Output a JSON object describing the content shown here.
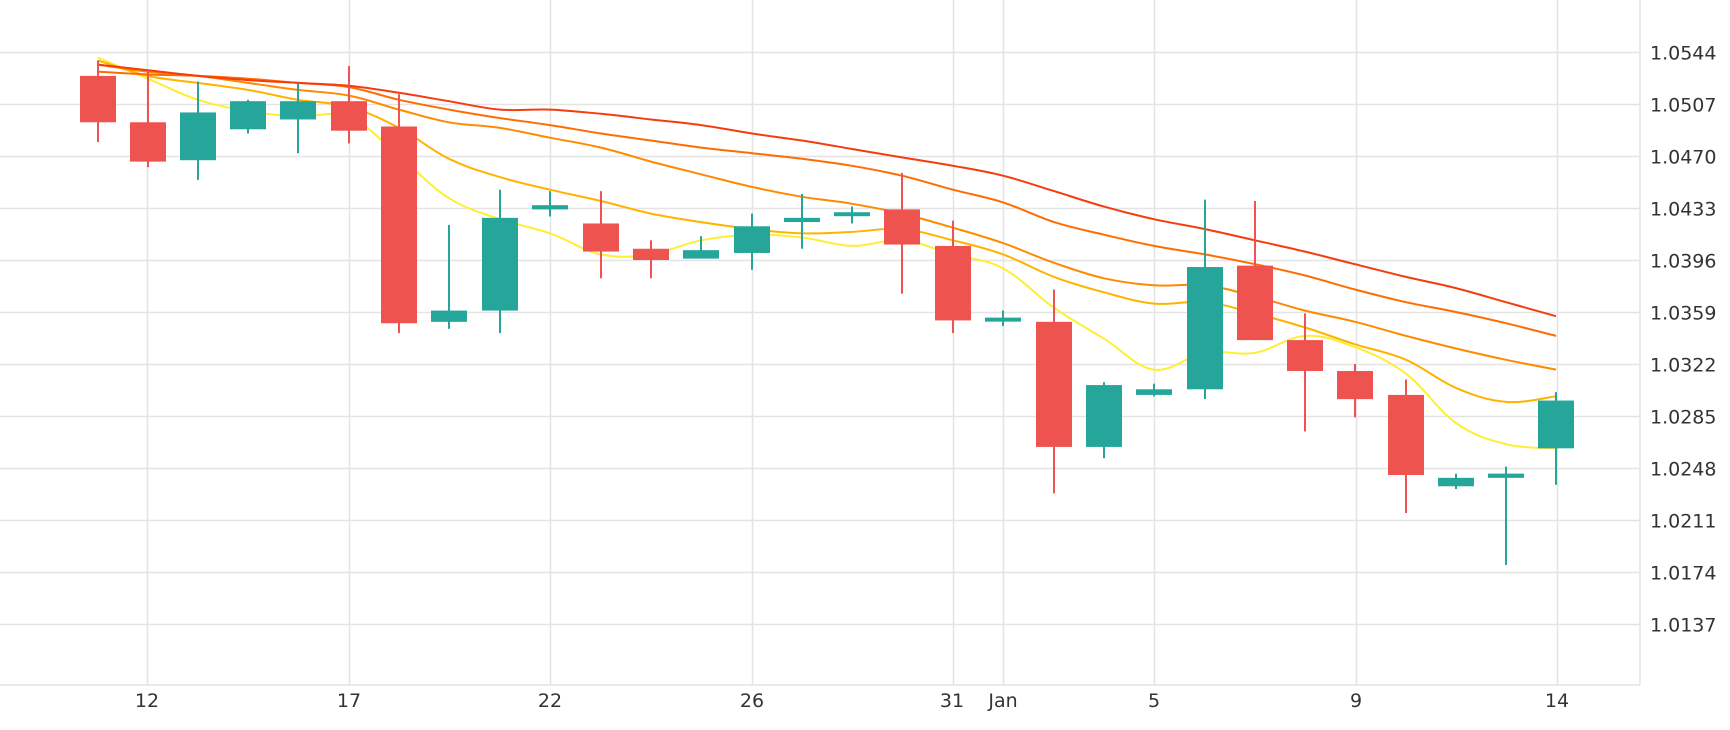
{
  "chart_data": {
    "type": "candlestick",
    "x_ticks": [
      "12",
      "17",
      "22",
      "26",
      "31",
      "Jan",
      "5",
      "9",
      "14"
    ],
    "y_ticks": [
      "1.0544",
      "1.0507",
      "1.0470",
      "1.0433",
      "1.0396",
      "1.0359",
      "1.0322",
      "1.0285",
      "1.0248",
      "1.0211",
      "1.0174",
      "1.0137"
    ],
    "ylim": [
      1.0104,
      1.0581
    ],
    "grid": true,
    "colors": {
      "up": "#26a69a",
      "down": "#ef5350",
      "grid": "#e4e4e4",
      "ma_lines": [
        "#ffee33",
        "#ffb300",
        "#ff8a00",
        "#ff6d00",
        "#f53c0f"
      ]
    },
    "candles": [
      {
        "date": "Dec 11",
        "open": 1.0527,
        "high": 1.0538,
        "low": 1.048,
        "close": 1.0494
      },
      {
        "date": "Dec 12",
        "open": 1.0494,
        "high": 1.0531,
        "low": 1.0462,
        "close": 1.0466
      },
      {
        "date": "Dec 13",
        "open": 1.0467,
        "high": 1.0523,
        "low": 1.0453,
        "close": 1.0501
      },
      {
        "date": "Dec 14",
        "open": 1.0489,
        "high": 1.051,
        "low": 1.0486,
        "close": 1.0509
      },
      {
        "date": "Dec 16",
        "open": 1.0496,
        "high": 1.0522,
        "low": 1.0472,
        "close": 1.0509
      },
      {
        "date": "Dec 17",
        "open": 1.0509,
        "high": 1.0534,
        "low": 1.0479,
        "close": 1.0488
      },
      {
        "date": "Dec 18",
        "open": 1.0491,
        "high": 1.0514,
        "low": 1.0344,
        "close": 1.0351
      },
      {
        "date": "Dec 19",
        "open": 1.0352,
        "high": 1.0421,
        "low": 1.0347,
        "close": 1.036
      },
      {
        "date": "Dec 20",
        "open": 1.036,
        "high": 1.0446,
        "low": 1.0344,
        "close": 1.0426
      },
      {
        "date": "Dec 22",
        "open": 1.0432,
        "high": 1.0445,
        "low": 1.0427,
        "close": 1.0435
      },
      {
        "date": "Dec 23",
        "open": 1.0422,
        "high": 1.0445,
        "low": 1.0383,
        "close": 1.0402
      },
      {
        "date": "Dec 24",
        "open": 1.0404,
        "high": 1.041,
        "low": 1.0383,
        "close": 1.0396
      },
      {
        "date": "Dec 25",
        "open": 1.0397,
        "high": 1.0413,
        "low": 1.0397,
        "close": 1.0403
      },
      {
        "date": "Dec 26",
        "open": 1.0401,
        "high": 1.0429,
        "low": 1.0389,
        "close": 1.042
      },
      {
        "date": "Dec 27",
        "open": 1.0423,
        "high": 1.0443,
        "low": 1.0404,
        "close": 1.0426
      },
      {
        "date": "Dec 29",
        "open": 1.0428,
        "high": 1.0434,
        "low": 1.0422,
        "close": 1.043
      },
      {
        "date": "Dec 30",
        "open": 1.0432,
        "high": 1.0458,
        "low": 1.0372,
        "close": 1.0407
      },
      {
        "date": "Dec 31",
        "open": 1.0406,
        "high": 1.0424,
        "low": 1.0344,
        "close": 1.0353
      },
      {
        "date": "Jan 1",
        "open": 1.0355,
        "high": 1.036,
        "low": 1.0349,
        "close": 1.0355
      },
      {
        "date": "Jan 3",
        "open": 1.0352,
        "high": 1.0375,
        "low": 1.023,
        "close": 1.0263
      },
      {
        "date": "Jan 4",
        "open": 1.0263,
        "high": 1.0309,
        "low": 1.0255,
        "close": 1.0307
      },
      {
        "date": "Jan 5",
        "open": 1.03,
        "high": 1.0308,
        "low": 1.0299,
        "close": 1.0304
      },
      {
        "date": "Jan 6",
        "open": 1.0304,
        "high": 1.0439,
        "low": 1.0297,
        "close": 1.0391
      },
      {
        "date": "Jan 7",
        "open": 1.0392,
        "high": 1.0438,
        "low": 1.0339,
        "close": 1.0339
      },
      {
        "date": "Jan 8",
        "open": 1.0339,
        "high": 1.0358,
        "low": 1.0274,
        "close": 1.0317
      },
      {
        "date": "Jan 9",
        "open": 1.0317,
        "high": 1.0322,
        "low": 1.0284,
        "close": 1.0297
      },
      {
        "date": "Jan 10",
        "open": 1.03,
        "high": 1.0311,
        "low": 1.0216,
        "close": 1.0243
      },
      {
        "date": "Jan 12",
        "open": 1.0235,
        "high": 1.0244,
        "low": 1.0233,
        "close": 1.0241
      },
      {
        "date": "Jan 13",
        "open": 1.0241,
        "high": 1.0249,
        "low": 1.0179,
        "close": 1.0244
      },
      {
        "date": "Jan 14",
        "open": 1.0262,
        "high": 1.0302,
        "low": 1.0236,
        "close": 1.0296
      }
    ],
    "ma_series": [
      {
        "values": [
          1.054,
          1.0525,
          1.051,
          1.0502,
          1.0498,
          1.0498,
          1.047,
          1.044,
          1.0425,
          1.0415,
          1.04,
          1.04,
          1.041,
          1.0414,
          1.0412,
          1.0406,
          1.041,
          1.04,
          1.039,
          1.0362,
          1.034,
          1.0318,
          1.033,
          1.033,
          1.0342,
          1.0334,
          1.0315,
          1.028,
          1.0265,
          1.0262
        ]
      },
      {
        "values": [
          1.0538,
          1.0527,
          1.0522,
          1.0517,
          1.051,
          1.0505,
          1.049,
          1.0468,
          1.0455,
          1.0446,
          1.0438,
          1.0429,
          1.0423,
          1.0418,
          1.0415,
          1.0416,
          1.0418,
          1.041,
          1.04,
          1.0384,
          1.0373,
          1.0365,
          1.0366,
          1.0358,
          1.0348,
          1.0336,
          1.0325,
          1.0305,
          1.0295,
          1.0299
        ]
      },
      {
        "values": [
          1.0535,
          1.053,
          1.0527,
          1.0522,
          1.0517,
          1.0513,
          1.0503,
          1.0494,
          1.049,
          1.0483,
          1.0476,
          1.0466,
          1.0457,
          1.0448,
          1.0441,
          1.0436,
          1.0429,
          1.0419,
          1.0408,
          1.0394,
          1.0383,
          1.0378,
          1.0378,
          1.037,
          1.036,
          1.0352,
          1.0342,
          1.0333,
          1.0325,
          1.0318
        ]
      },
      {
        "values": [
          1.053,
          1.0528,
          1.0527,
          1.0525,
          1.0522,
          1.0519,
          1.051,
          1.0503,
          1.0497,
          1.0492,
          1.0486,
          1.0481,
          1.0476,
          1.0472,
          1.0468,
          1.0463,
          1.0456,
          1.0446,
          1.0437,
          1.0423,
          1.0414,
          1.0406,
          1.04,
          1.0393,
          1.0385,
          1.0375,
          1.0366,
          1.0359,
          1.0351,
          1.0342
        ]
      },
      {
        "values": [
          1.0535,
          1.0531,
          1.0527,
          1.0524,
          1.0522,
          1.052,
          1.0515,
          1.0509,
          1.0503,
          1.0503,
          1.05,
          1.0496,
          1.0492,
          1.0486,
          1.0481,
          1.0475,
          1.0469,
          1.0463,
          1.0456,
          1.0445,
          1.0434,
          1.0425,
          1.0418,
          1.041,
          1.0402,
          1.0393,
          1.0384,
          1.0376,
          1.0366,
          1.0356
        ]
      }
    ]
  }
}
